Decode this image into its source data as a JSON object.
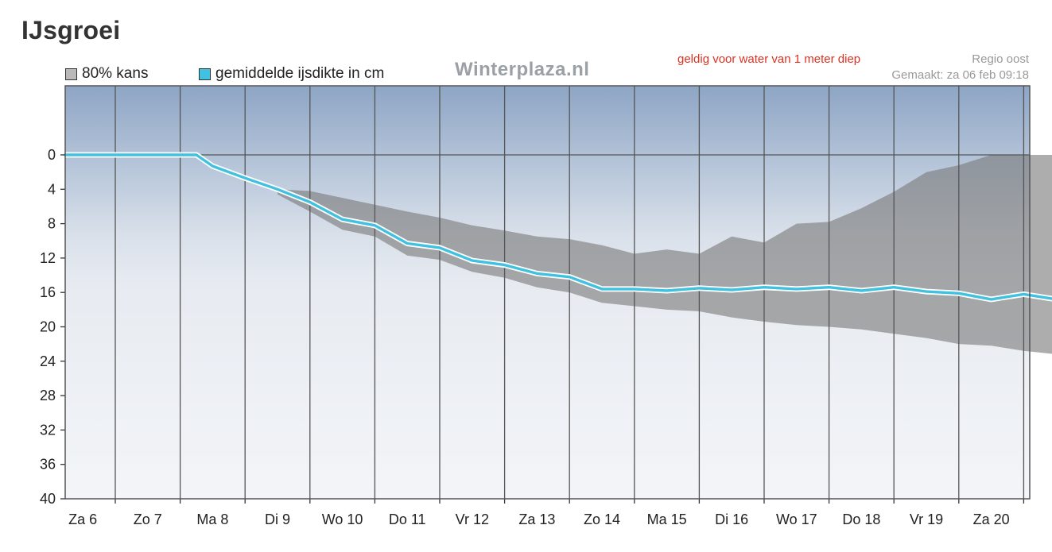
{
  "page": {
    "title": "IJsgroei"
  },
  "legend": {
    "band_label": "80% kans",
    "line_label": "gemiddelde ijsdikte in cm"
  },
  "brand": "Winterplaza.nl",
  "note": "geldig voor water van 1 meter diep",
  "region": "Regio oost",
  "made": "Gemaakt: za 06 feb 09:18",
  "colors": {
    "line": "#3fc1df",
    "line_halo": "#ffffff",
    "band": "#7b7b7b",
    "grid": "#555555",
    "sky_top": "#8fa6c6",
    "snow": "#eef1f6"
  },
  "chart_data": {
    "type": "area",
    "x": [
      "Za 6",
      "Zo 7",
      "Ma 8",
      "Di 9",
      "Wo 10",
      "Do 11",
      "Vr 12",
      "Za 13",
      "Zo 14",
      "Ma 15",
      "Di 16",
      "Wo 17",
      "Do 18",
      "Vr 19",
      "Za 20"
    ],
    "ylim": [
      0,
      40
    ],
    "y_inverted": true,
    "yticks": [
      0,
      4,
      8,
      12,
      16,
      20,
      24,
      28,
      32,
      36,
      40
    ],
    "grid": true,
    "legend_position": "top-left",
    "series": [
      {
        "name": "gemiddelde ijsdikte in cm",
        "type": "line",
        "points": [
          [
            0,
            0
          ],
          [
            0.5,
            0
          ],
          [
            1,
            0
          ],
          [
            1.25,
            0
          ],
          [
            1.5,
            1.3
          ],
          [
            2,
            2.7
          ],
          [
            2.5,
            4
          ],
          [
            3,
            5.5
          ],
          [
            3.5,
            7.5
          ],
          [
            4,
            8.2
          ],
          [
            4.5,
            10.3
          ],
          [
            5,
            10.8
          ],
          [
            5.5,
            12.3
          ],
          [
            6,
            12.8
          ],
          [
            6.5,
            13.8
          ],
          [
            7,
            14.2
          ],
          [
            7.5,
            15.6
          ],
          [
            8,
            15.6
          ],
          [
            8.5,
            15.8
          ],
          [
            9,
            15.5
          ],
          [
            9.5,
            15.7
          ],
          [
            10,
            15.4
          ],
          [
            10.5,
            15.6
          ],
          [
            11,
            15.4
          ],
          [
            11.5,
            15.8
          ],
          [
            12,
            15.4
          ],
          [
            12.5,
            15.9
          ],
          [
            13,
            16.1
          ],
          [
            13.5,
            16.8
          ],
          [
            14,
            16.2
          ],
          [
            14.5,
            16.8
          ],
          [
            14.8,
            17
          ]
        ]
      },
      {
        "name": "80% kans",
        "type": "band",
        "upper": [
          [
            2.5,
            4
          ],
          [
            3,
            4.2
          ],
          [
            3.5,
            5
          ],
          [
            4,
            5.8
          ],
          [
            4.5,
            6.6
          ],
          [
            5,
            7.3
          ],
          [
            5.5,
            8.2
          ],
          [
            6,
            8.8
          ],
          [
            6.5,
            9.5
          ],
          [
            7,
            9.8
          ],
          [
            7.5,
            10.5
          ],
          [
            8,
            11.5
          ],
          [
            8.5,
            11
          ],
          [
            9,
            11.5
          ],
          [
            9.5,
            9.5
          ],
          [
            10,
            10.2
          ],
          [
            10.5,
            8
          ],
          [
            11,
            7.8
          ],
          [
            11.5,
            6.2
          ],
          [
            12,
            4.3
          ],
          [
            12.5,
            2
          ],
          [
            13,
            1.2
          ],
          [
            13.5,
            0
          ],
          [
            14.8,
            0
          ]
        ],
        "lower": [
          [
            2.5,
            4.6
          ],
          [
            3,
            6.6
          ],
          [
            3.5,
            8.7
          ],
          [
            4,
            9.5
          ],
          [
            4.5,
            11.7
          ],
          [
            5,
            12.2
          ],
          [
            5.5,
            13.6
          ],
          [
            6,
            14.3
          ],
          [
            6.5,
            15.4
          ],
          [
            7,
            16
          ],
          [
            7.5,
            17.2
          ],
          [
            8,
            17.6
          ],
          [
            8.5,
            18
          ],
          [
            9,
            18.2
          ],
          [
            9.5,
            18.9
          ],
          [
            10,
            19.4
          ],
          [
            10.5,
            19.8
          ],
          [
            11,
            20
          ],
          [
            11.5,
            20.3
          ],
          [
            12,
            20.8
          ],
          [
            12.5,
            21.3
          ],
          [
            13,
            22
          ],
          [
            13.5,
            22.2
          ],
          [
            14,
            22.8
          ],
          [
            14.5,
            23.2
          ],
          [
            14.8,
            23.3
          ]
        ]
      }
    ]
  }
}
